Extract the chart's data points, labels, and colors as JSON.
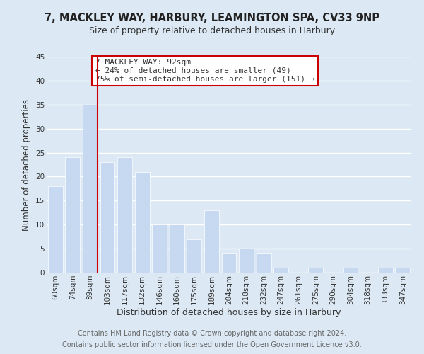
{
  "title": "7, MACKLEY WAY, HARBURY, LEAMINGTON SPA, CV33 9NP",
  "subtitle": "Size of property relative to detached houses in Harbury",
  "xlabel": "Distribution of detached houses by size in Harbury",
  "ylabel": "Number of detached properties",
  "bar_labels": [
    "60sqm",
    "74sqm",
    "89sqm",
    "103sqm",
    "117sqm",
    "132sqm",
    "146sqm",
    "160sqm",
    "175sqm",
    "189sqm",
    "204sqm",
    "218sqm",
    "232sqm",
    "247sqm",
    "261sqm",
    "275sqm",
    "290sqm",
    "304sqm",
    "318sqm",
    "333sqm",
    "347sqm"
  ],
  "bar_values": [
    18,
    24,
    35,
    23,
    24,
    21,
    10,
    10,
    7,
    13,
    4,
    5,
    4,
    1,
    0,
    1,
    0,
    1,
    0,
    1,
    1
  ],
  "bar_color": "#c6d9f0",
  "bar_edge_color": "#ffffff",
  "grid_color": "#ffffff",
  "background_color": "#dce9f5",
  "plot_bg_color": "#dce9f5",
  "vline_color": "#cc0000",
  "ylim": [
    0,
    45
  ],
  "yticks": [
    0,
    5,
    10,
    15,
    20,
    25,
    30,
    35,
    40,
    45
  ],
  "annotation_title": "7 MACKLEY WAY: 92sqm",
  "annotation_line1": "← 24% of detached houses are smaller (49)",
  "annotation_line2": "75% of semi-detached houses are larger (151) →",
  "annotation_box_color": "#ffffff",
  "annotation_box_edge": "#cc0000",
  "footer_line1": "Contains HM Land Registry data © Crown copyright and database right 2024.",
  "footer_line2": "Contains public sector information licensed under the Open Government Licence v3.0.",
  "title_fontsize": 10.5,
  "subtitle_fontsize": 9,
  "tick_fontsize": 7.5,
  "ylabel_fontsize": 8.5,
  "xlabel_fontsize": 9
}
